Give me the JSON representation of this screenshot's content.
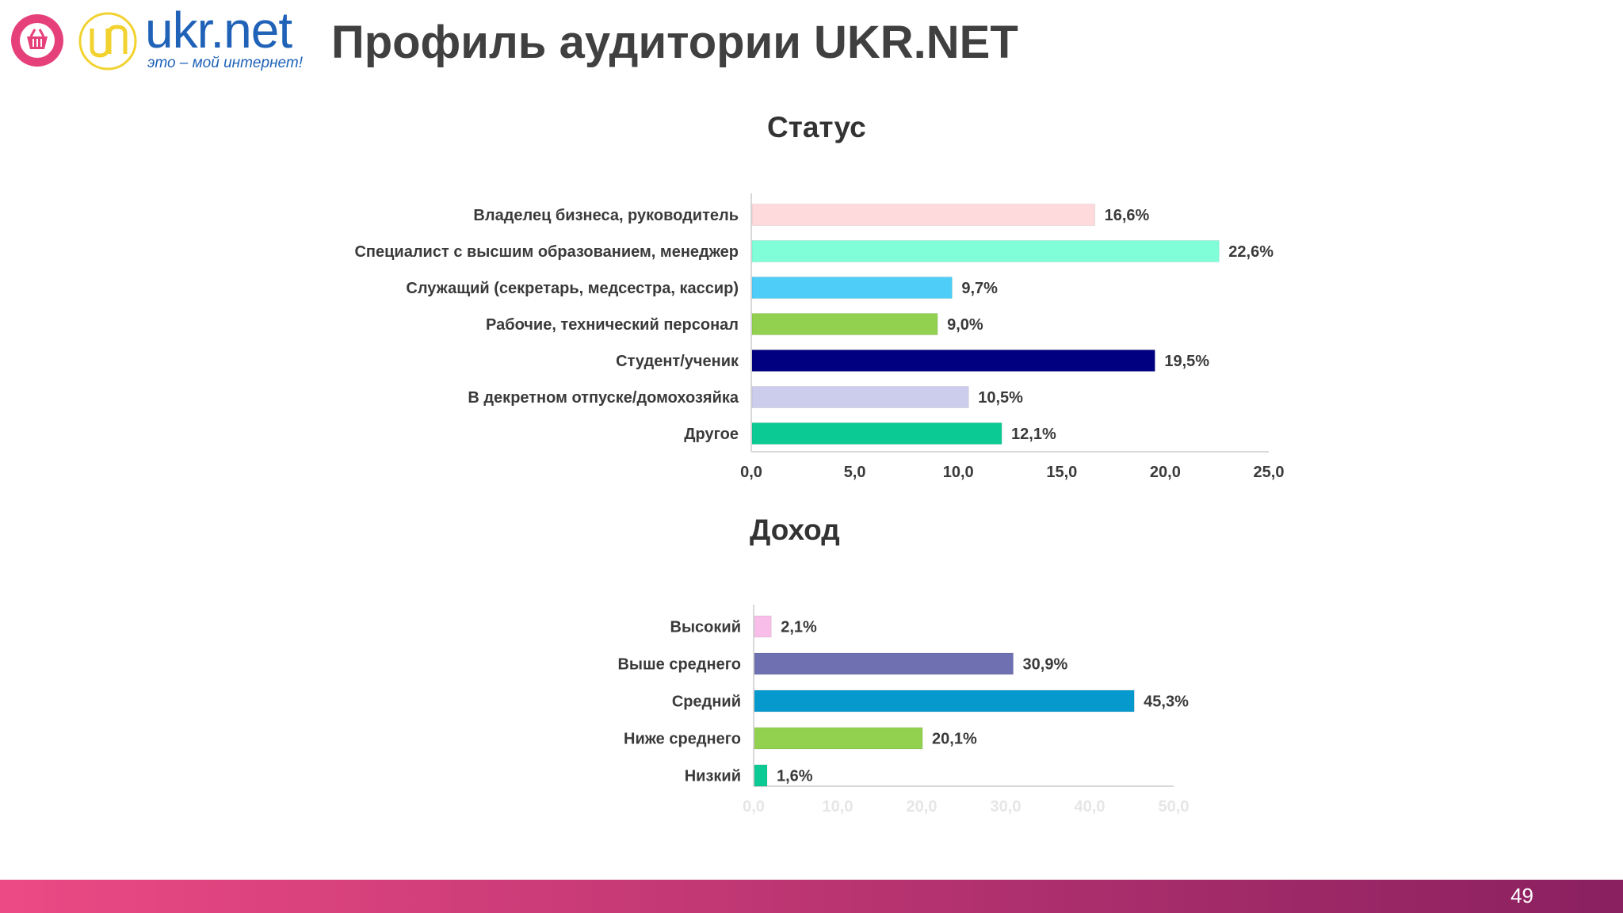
{
  "header": {
    "logo_text": "ukr.net",
    "logo_slogan": "это – мой интернет!",
    "title": "Профиль аудитории UKR.NET"
  },
  "colors": {
    "brand_pink": "#e6407a",
    "brand_blue": "#1f62b8",
    "logo_yellow": "#f2d22e"
  },
  "icons": {
    "basket": "shopping-basket-icon",
    "un": "un-logo-icon"
  },
  "footer": {
    "page_number": "49"
  },
  "chart_data": [
    {
      "type": "bar",
      "orientation": "horizontal",
      "title": "Статус",
      "categories": [
        "Владелец бизнеса, руководитель",
        "Специалист с высшим образованием, менеджер",
        "Служащий (секретарь, медсестра, кассир)",
        "Рабочие, технический персонал",
        "Студент/ученик",
        "В декретном отпуске/домохозяйка",
        "Другое"
      ],
      "values": [
        16.6,
        22.6,
        9.7,
        9.0,
        19.5,
        10.5,
        12.1
      ],
      "value_labels": [
        "16,6%",
        "22,6%",
        "9,7%",
        "9,0%",
        "19,5%",
        "10,5%",
        "12,1%"
      ],
      "colors": [
        "#ffdadd",
        "#80fed8",
        "#4dcdf7",
        "#92d050",
        "#000080",
        "#ccccec",
        "#0cca94"
      ],
      "xlim": [
        0,
        25
      ],
      "ticks": [
        0,
        5,
        10,
        15,
        20,
        25
      ],
      "tick_labels": [
        "0,0",
        "5,0",
        "10,0",
        "15,0",
        "20,0",
        "25,0"
      ],
      "grid": false,
      "legend": "none"
    },
    {
      "type": "bar",
      "orientation": "horizontal",
      "title": "Доход",
      "categories": [
        "Высокий",
        "Выше среднего",
        "Средний",
        "Ниже среднего",
        "Низкий"
      ],
      "values": [
        2.1,
        30.9,
        45.3,
        20.1,
        1.6
      ],
      "value_labels": [
        "2,1%",
        "30,9%",
        "45,3%",
        "20,1%",
        "1,6%"
      ],
      "colors": [
        "#f8bee9",
        "#6e70b1",
        "#0599ce",
        "#92d050",
        "#0cca94"
      ],
      "xlim": [
        0,
        50
      ],
      "ticks": [
        0,
        10,
        20,
        30,
        40,
        50
      ],
      "tick_labels": [
        "0,0",
        "10,0",
        "20,0",
        "30,0",
        "40,0",
        "50,0"
      ],
      "grid": false,
      "legend": "none"
    }
  ]
}
